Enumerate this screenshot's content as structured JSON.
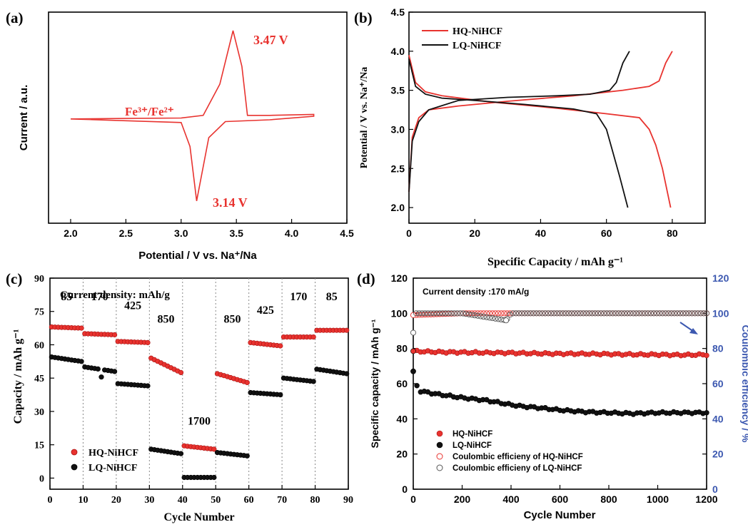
{
  "colors": {
    "red": "#e8332f",
    "black": "#111111",
    "blue": "#3c58b0"
  },
  "chart_data": [
    {
      "panel": "(a)",
      "type": "line",
      "xlabel": "Potential / V vs. Na⁺/Na",
      "ylabel": "Current / a.u.",
      "xlim": [
        1.8,
        4.5
      ],
      "xticks": [
        "2.0",
        "2.5",
        "3.0",
        "3.5",
        "4.0",
        "4.5"
      ],
      "annotations": {
        "redox_couple": "Fe³⁺/Fe²⁺",
        "peak_ox": "3.47 V",
        "peak_red": "3.14 V"
      },
      "curve_relative_current": [
        {
          "x": 2.0,
          "y": 0.01
        },
        {
          "x": 2.5,
          "y": 0.015
        },
        {
          "x": 3.0,
          "y": 0.02
        },
        {
          "x": 3.2,
          "y": 0.05
        },
        {
          "x": 3.35,
          "y": 0.4
        },
        {
          "x": 3.47,
          "y": 1.0
        },
        {
          "x": 3.55,
          "y": 0.6
        },
        {
          "x": 3.6,
          "y": 0.05
        },
        {
          "x": 3.8,
          "y": 0.05
        },
        {
          "x": 4.2,
          "y": 0.06
        },
        {
          "x": 4.2,
          "y": 0.04
        },
        {
          "x": 3.8,
          "y": 0.0
        },
        {
          "x": 3.4,
          "y": -0.02
        },
        {
          "x": 3.25,
          "y": -0.2
        },
        {
          "x": 3.14,
          "y": -0.91
        },
        {
          "x": 3.08,
          "y": -0.3
        },
        {
          "x": 3.0,
          "y": -0.03
        },
        {
          "x": 2.5,
          "y": -0.01
        },
        {
          "x": 2.0,
          "y": 0.01
        }
      ]
    },
    {
      "panel": "(b)",
      "type": "line",
      "xlabel": "Specific Capacity / mAh g⁻¹",
      "ylabel": "Potential / V vs. Na⁺/Na",
      "xlim": [
        0,
        90
      ],
      "ylim": [
        1.8,
        4.5
      ],
      "xticks": [
        "0",
        "20",
        "40",
        "60",
        "80"
      ],
      "yticks": [
        "2.0",
        "2.5",
        "3.0",
        "3.5",
        "4.0",
        "4.5"
      ],
      "series": [
        {
          "name": "HQ-NiHCF",
          "color": "#e8332f",
          "charge": [
            [
              0,
              2.2
            ],
            [
              1,
              2.9
            ],
            [
              3,
              3.15
            ],
            [
              6,
              3.25
            ],
            [
              15,
              3.3
            ],
            [
              30,
              3.36
            ],
            [
              50,
              3.43
            ],
            [
              65,
              3.5
            ],
            [
              73,
              3.55
            ],
            [
              76,
              3.62
            ],
            [
              78,
              3.85
            ],
            [
              80,
              4.0
            ]
          ],
          "discharge": [
            [
              0,
              3.95
            ],
            [
              2,
              3.6
            ],
            [
              5,
              3.48
            ],
            [
              10,
              3.43
            ],
            [
              25,
              3.35
            ],
            [
              45,
              3.27
            ],
            [
              60,
              3.2
            ],
            [
              70,
              3.15
            ],
            [
              73,
              3.0
            ],
            [
              75,
              2.8
            ],
            [
              77,
              2.5
            ],
            [
              79.5,
              2.0
            ]
          ]
        },
        {
          "name": "LQ-NiHCF",
          "color": "#111111",
          "charge": [
            [
              0,
              2.2
            ],
            [
              1,
              2.85
            ],
            [
              3,
              3.1
            ],
            [
              6,
              3.25
            ],
            [
              15,
              3.37
            ],
            [
              30,
              3.41
            ],
            [
              45,
              3.43
            ],
            [
              55,
              3.45
            ],
            [
              61,
              3.5
            ],
            [
              63,
              3.6
            ],
            [
              65,
              3.85
            ],
            [
              67,
              4.0
            ]
          ],
          "discharge": [
            [
              0,
              3.9
            ],
            [
              2,
              3.55
            ],
            [
              5,
              3.45
            ],
            [
              10,
              3.4
            ],
            [
              20,
              3.37
            ],
            [
              35,
              3.32
            ],
            [
              50,
              3.26
            ],
            [
              57,
              3.2
            ],
            [
              60,
              3.0
            ],
            [
              62,
              2.7
            ],
            [
              64,
              2.4
            ],
            [
              66.5,
              2.0
            ]
          ]
        }
      ]
    },
    {
      "panel": "(c)",
      "type": "scatter",
      "annotation": "Current density: mAh/g",
      "xlabel": "Cycle Number",
      "ylabel": "Capacity / mAh g⁻¹",
      "xlim": [
        0,
        90
      ],
      "ylim": [
        -5,
        90
      ],
      "xticks": [
        "0",
        "10",
        "20",
        "30",
        "40",
        "50",
        "60",
        "70",
        "80",
        "90"
      ],
      "yticks": [
        "0",
        "15",
        "30",
        "45",
        "60",
        "75",
        "90"
      ],
      "rate_labels": [
        "85",
        "170",
        "425",
        "850",
        "1700",
        "850",
        "425",
        "170",
        "85"
      ],
      "series": [
        {
          "name": "HQ-NiHCF",
          "color": "#e8332f",
          "segments": [
            [
              68,
              67.5
            ],
            [
              65,
              64.5
            ],
            [
              61.5,
              61
            ],
            [
              54,
              47.5
            ],
            [
              14.5,
              13
            ],
            [
              47,
              43
            ],
            [
              61,
              59.5
            ],
            [
              63.5,
              63.5
            ],
            [
              66.5,
              66.5
            ]
          ]
        },
        {
          "name": "LQ-NiHCF",
          "color": "#111111",
          "segments": [
            [
              54.5,
              52.5
            ],
            [
              50,
              48
            ],
            [
              42.5,
              41.5
            ],
            [
              13,
              11
            ],
            [
              0.3,
              0.3
            ],
            [
              11.5,
              10
            ],
            [
              38.5,
              37.5
            ],
            [
              45,
              43.5
            ],
            [
              49,
              47
            ]
          ]
        }
      ]
    },
    {
      "panel": "(d)",
      "type": "scatter",
      "annotation": "Current density :170 mA/g",
      "xlabel": "Cycle Number",
      "ylabel": "Specific capacity / mAh g⁻¹",
      "y2label": "Coulombic efficiency / %",
      "xlim": [
        0,
        1200
      ],
      "ylim": [
        0,
        120
      ],
      "y2lim": [
        0,
        120
      ],
      "xticks": [
        "0",
        "200",
        "400",
        "600",
        "800",
        "1000",
        "1200"
      ],
      "yticks": [
        "0",
        "20",
        "40",
        "60",
        "80",
        "100",
        "120"
      ],
      "series": [
        {
          "name": "HQ-NiHCF",
          "color": "#e8332f",
          "fill": true,
          "points": [
            [
              0,
              78.5
            ],
            [
              100,
              78
            ],
            [
              200,
              77.8
            ],
            [
              300,
              77.6
            ],
            [
              400,
              77.5
            ],
            [
              500,
              77.2
            ],
            [
              600,
              77
            ],
            [
              700,
              77
            ],
            [
              800,
              76.8
            ],
            [
              900,
              76.6
            ],
            [
              1000,
              76.5
            ],
            [
              1100,
              76.3
            ],
            [
              1200,
              76.5
            ]
          ]
        },
        {
          "name": "LQ-NiHCF",
          "color": "#111111",
          "fill": true,
          "points": [
            [
              0,
              67
            ],
            [
              20,
              56
            ],
            [
              100,
              54
            ],
            [
              200,
              52
            ],
            [
              300,
              50.5
            ],
            [
              400,
              48
            ],
            [
              450,
              47
            ],
            [
              500,
              46.5
            ],
            [
              600,
              45
            ],
            [
              700,
              44
            ],
            [
              800,
              43.5
            ],
            [
              900,
              43
            ],
            [
              1000,
              43.5
            ],
            [
              1100,
              43.5
            ],
            [
              1200,
              43.5
            ]
          ]
        },
        {
          "name": "Coulombic efficieny of HQ-NiHCF",
          "color": "#e8332f",
          "fill": false,
          "axis": "right",
          "points": [
            [
              0,
              99
            ],
            [
              200,
              100
            ],
            [
              400,
              100
            ],
            [
              600,
              100
            ],
            [
              800,
              100
            ],
            [
              1000,
              100
            ],
            [
              1200,
              100
            ]
          ]
        },
        {
          "name": "Coulombic efficieny of LQ-NiHCF",
          "color": "#555555",
          "fill": false,
          "axis": "right",
          "points": [
            [
              0,
              89
            ],
            [
              5,
              100
            ],
            [
              200,
              100
            ],
            [
              380,
              96
            ],
            [
              400,
              100
            ],
            [
              600,
              100
            ],
            [
              800,
              100
            ],
            [
              1000,
              100
            ],
            [
              1200,
              100
            ]
          ]
        }
      ]
    }
  ]
}
